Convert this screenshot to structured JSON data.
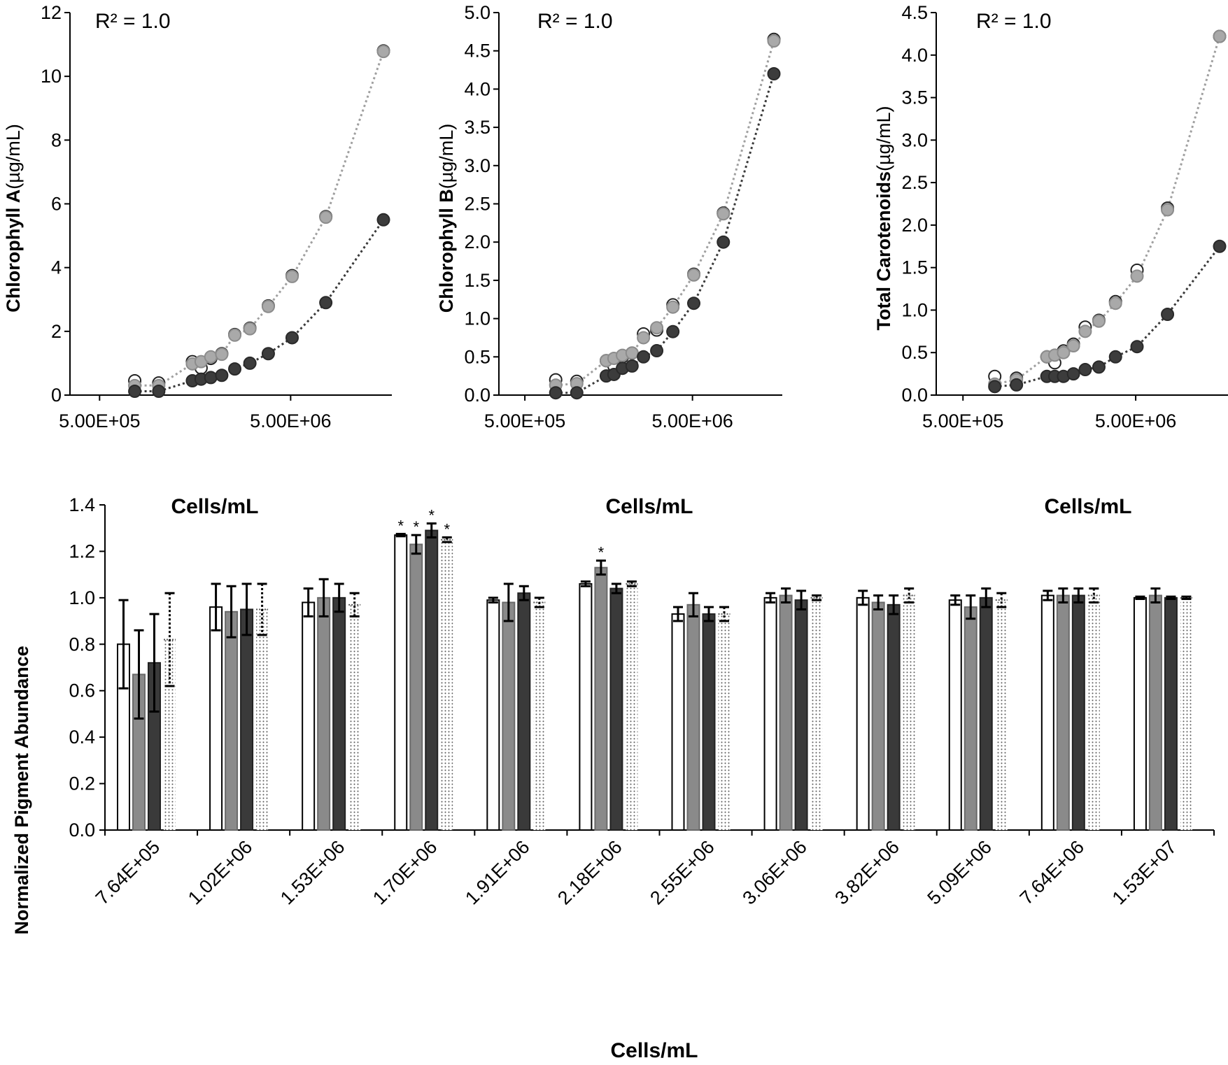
{
  "chart_data": [
    {
      "type": "scatter",
      "id": "chl_a",
      "x_scale": "log",
      "annotation": "R² = 1.0",
      "ylabel_bold": "Chlorophyll A",
      "ylabel_unit": "(µg/mL)",
      "xlabel": "Cells/mL",
      "xticks": [
        {
          "value": 500000,
          "label": "5.00E+05"
        },
        {
          "value": 5000000,
          "label": "5.00E+06"
        }
      ],
      "ylim": [
        0,
        12
      ],
      "yticks": [
        "0",
        "2",
        "4",
        "6",
        "8",
        "10",
        "12"
      ],
      "x": [
        764000,
        1020000,
        1530000,
        1700000,
        1910000,
        2180000,
        2550000,
        3060000,
        3820000,
        5090000,
        7640000,
        15300000
      ],
      "series": [
        {
          "name": "white",
          "values": [
            0.45,
            0.38,
            1.05,
            0.85,
            1.15,
            1.3,
            1.9,
            2.1,
            2.8,
            3.75,
            5.6,
            10.8
          ]
        },
        {
          "name": "light gray",
          "values": [
            0.3,
            0.3,
            0.98,
            1.05,
            1.2,
            1.28,
            1.88,
            2.08,
            2.78,
            3.72,
            5.58,
            10.78
          ]
        },
        {
          "name": "dark gray",
          "values": [
            0.12,
            0.12,
            0.45,
            0.5,
            0.55,
            0.62,
            0.82,
            1.0,
            1.3,
            1.8,
            2.9,
            5.5
          ]
        }
      ]
    },
    {
      "type": "scatter",
      "id": "chl_b",
      "x_scale": "log",
      "annotation": "R² = 1.0",
      "ylabel_bold": "Chlorophyll B",
      "ylabel_unit": "(µg/mL)",
      "xlabel": "Cells/mL",
      "xticks": [
        {
          "value": 500000,
          "label": "5.00E+05"
        },
        {
          "value": 5000000,
          "label": "5.00E+06"
        }
      ],
      "ylim": [
        0,
        5
      ],
      "yticks": [
        "0.0",
        "0.5",
        "1.0",
        "1.5",
        "2.0",
        "2.5",
        "3.0",
        "3.5",
        "4.0",
        "4.5",
        "5.0"
      ],
      "x": [
        764000,
        1020000,
        1530000,
        1700000,
        1910000,
        2180000,
        2550000,
        3060000,
        3820000,
        5090000,
        7640000,
        15300000
      ],
      "series": [
        {
          "name": "white",
          "values": [
            0.2,
            0.18,
            0.45,
            0.38,
            0.5,
            0.55,
            0.8,
            0.85,
            1.18,
            1.58,
            2.38,
            4.65
          ]
        },
        {
          "name": "light gray",
          "values": [
            0.13,
            0.15,
            0.45,
            0.48,
            0.52,
            0.55,
            0.75,
            0.88,
            1.15,
            1.57,
            2.37,
            4.63
          ]
        },
        {
          "name": "dark gray",
          "values": [
            0.03,
            0.03,
            0.25,
            0.27,
            0.35,
            0.38,
            0.5,
            0.58,
            0.83,
            1.2,
            2.0,
            4.2
          ]
        }
      ]
    },
    {
      "type": "scatter",
      "id": "carot",
      "x_scale": "log",
      "annotation": "R² = 1.0",
      "ylabel_bold": "Total Carotenoids",
      "ylabel_unit": "(µg/mL)",
      "xlabel": "Cells/mL",
      "xticks": [
        {
          "value": 500000,
          "label": "5.00E+05"
        },
        {
          "value": 5000000,
          "label": "5.00E+06"
        }
      ],
      "ylim": [
        0,
        4.5
      ],
      "yticks": [
        "0.0",
        "0.5",
        "1.0",
        "1.5",
        "2.0",
        "2.5",
        "3.0",
        "3.5",
        "4.0",
        "4.5"
      ],
      "x": [
        764000,
        1020000,
        1530000,
        1700000,
        1910000,
        2180000,
        2550000,
        3060000,
        3820000,
        5090000,
        7640000,
        15300000
      ],
      "series": [
        {
          "name": "white",
          "values": [
            0.22,
            0.2,
            0.45,
            0.38,
            0.52,
            0.6,
            0.8,
            0.88,
            1.1,
            1.47,
            2.2,
            4.22
          ]
        },
        {
          "name": "light gray",
          "values": [
            0.13,
            0.18,
            0.45,
            0.47,
            0.5,
            0.58,
            0.75,
            0.87,
            1.08,
            1.4,
            2.18,
            4.22
          ]
        },
        {
          "name": "dark gray",
          "values": [
            0.1,
            0.12,
            0.22,
            0.22,
            0.22,
            0.25,
            0.3,
            0.33,
            0.45,
            0.57,
            0.95,
            1.75
          ]
        }
      ]
    },
    {
      "type": "bar",
      "id": "norm",
      "ylabel": "Normalized Pigment Abundance",
      "xlabel": "Cells/mL",
      "ylim": [
        0,
        1.4
      ],
      "yticks": [
        "0.0",
        "0.2",
        "0.4",
        "0.6",
        "0.8",
        "1.0",
        "1.2",
        "1.4"
      ],
      "categories": [
        "7.64E+05",
        "1.02E+06",
        "1.53E+06",
        "1.70E+06",
        "1.91E+06",
        "2.18E+06",
        "2.55E+06",
        "3.06E+06",
        "3.82E+06",
        "5.09E+06",
        "7.64E+06",
        "1.53E+07"
      ],
      "significance_marker": "*",
      "series": [
        {
          "name": "white",
          "fill": "white",
          "values": [
            0.8,
            0.96,
            0.98,
            1.27,
            0.99,
            1.06,
            0.93,
            1.0,
            1.0,
            0.99,
            1.01,
            1.0
          ],
          "errors": [
            0.19,
            0.1,
            0.06,
            0.005,
            0.01,
            0.01,
            0.03,
            0.02,
            0.03,
            0.02,
            0.02,
            0.005
          ],
          "significant": [
            false,
            false,
            false,
            true,
            false,
            false,
            false,
            false,
            false,
            false,
            false,
            false
          ]
        },
        {
          "name": "gray",
          "fill": "gray",
          "values": [
            0.67,
            0.94,
            1.0,
            1.23,
            0.98,
            1.13,
            0.97,
            1.01,
            0.98,
            0.96,
            1.01,
            1.01
          ],
          "errors": [
            0.19,
            0.11,
            0.08,
            0.04,
            0.08,
            0.03,
            0.05,
            0.03,
            0.03,
            0.05,
            0.03,
            0.03
          ],
          "significant": [
            false,
            false,
            false,
            true,
            false,
            true,
            false,
            false,
            false,
            false,
            false,
            false
          ]
        },
        {
          "name": "dark gray",
          "fill": "dark",
          "values": [
            0.72,
            0.95,
            1.0,
            1.29,
            1.02,
            1.04,
            0.93,
            0.99,
            0.97,
            1.0,
            1.01,
            1.0
          ],
          "errors": [
            0.21,
            0.11,
            0.06,
            0.03,
            0.03,
            0.02,
            0.03,
            0.04,
            0.04,
            0.04,
            0.03,
            0.005
          ],
          "significant": [
            false,
            false,
            false,
            true,
            false,
            false,
            false,
            false,
            false,
            false,
            false,
            false
          ]
        },
        {
          "name": "dotted",
          "fill": "dotted",
          "values": [
            0.82,
            0.95,
            0.97,
            1.25,
            0.98,
            1.06,
            0.93,
            1.0,
            1.01,
            0.99,
            1.01,
            1.0
          ],
          "errors": [
            0.2,
            0.11,
            0.05,
            0.01,
            0.02,
            0.01,
            0.03,
            0.01,
            0.03,
            0.03,
            0.03,
            0.005
          ],
          "significant": [
            false,
            false,
            false,
            true,
            false,
            false,
            false,
            false,
            false,
            false,
            false,
            false
          ]
        }
      ]
    }
  ]
}
